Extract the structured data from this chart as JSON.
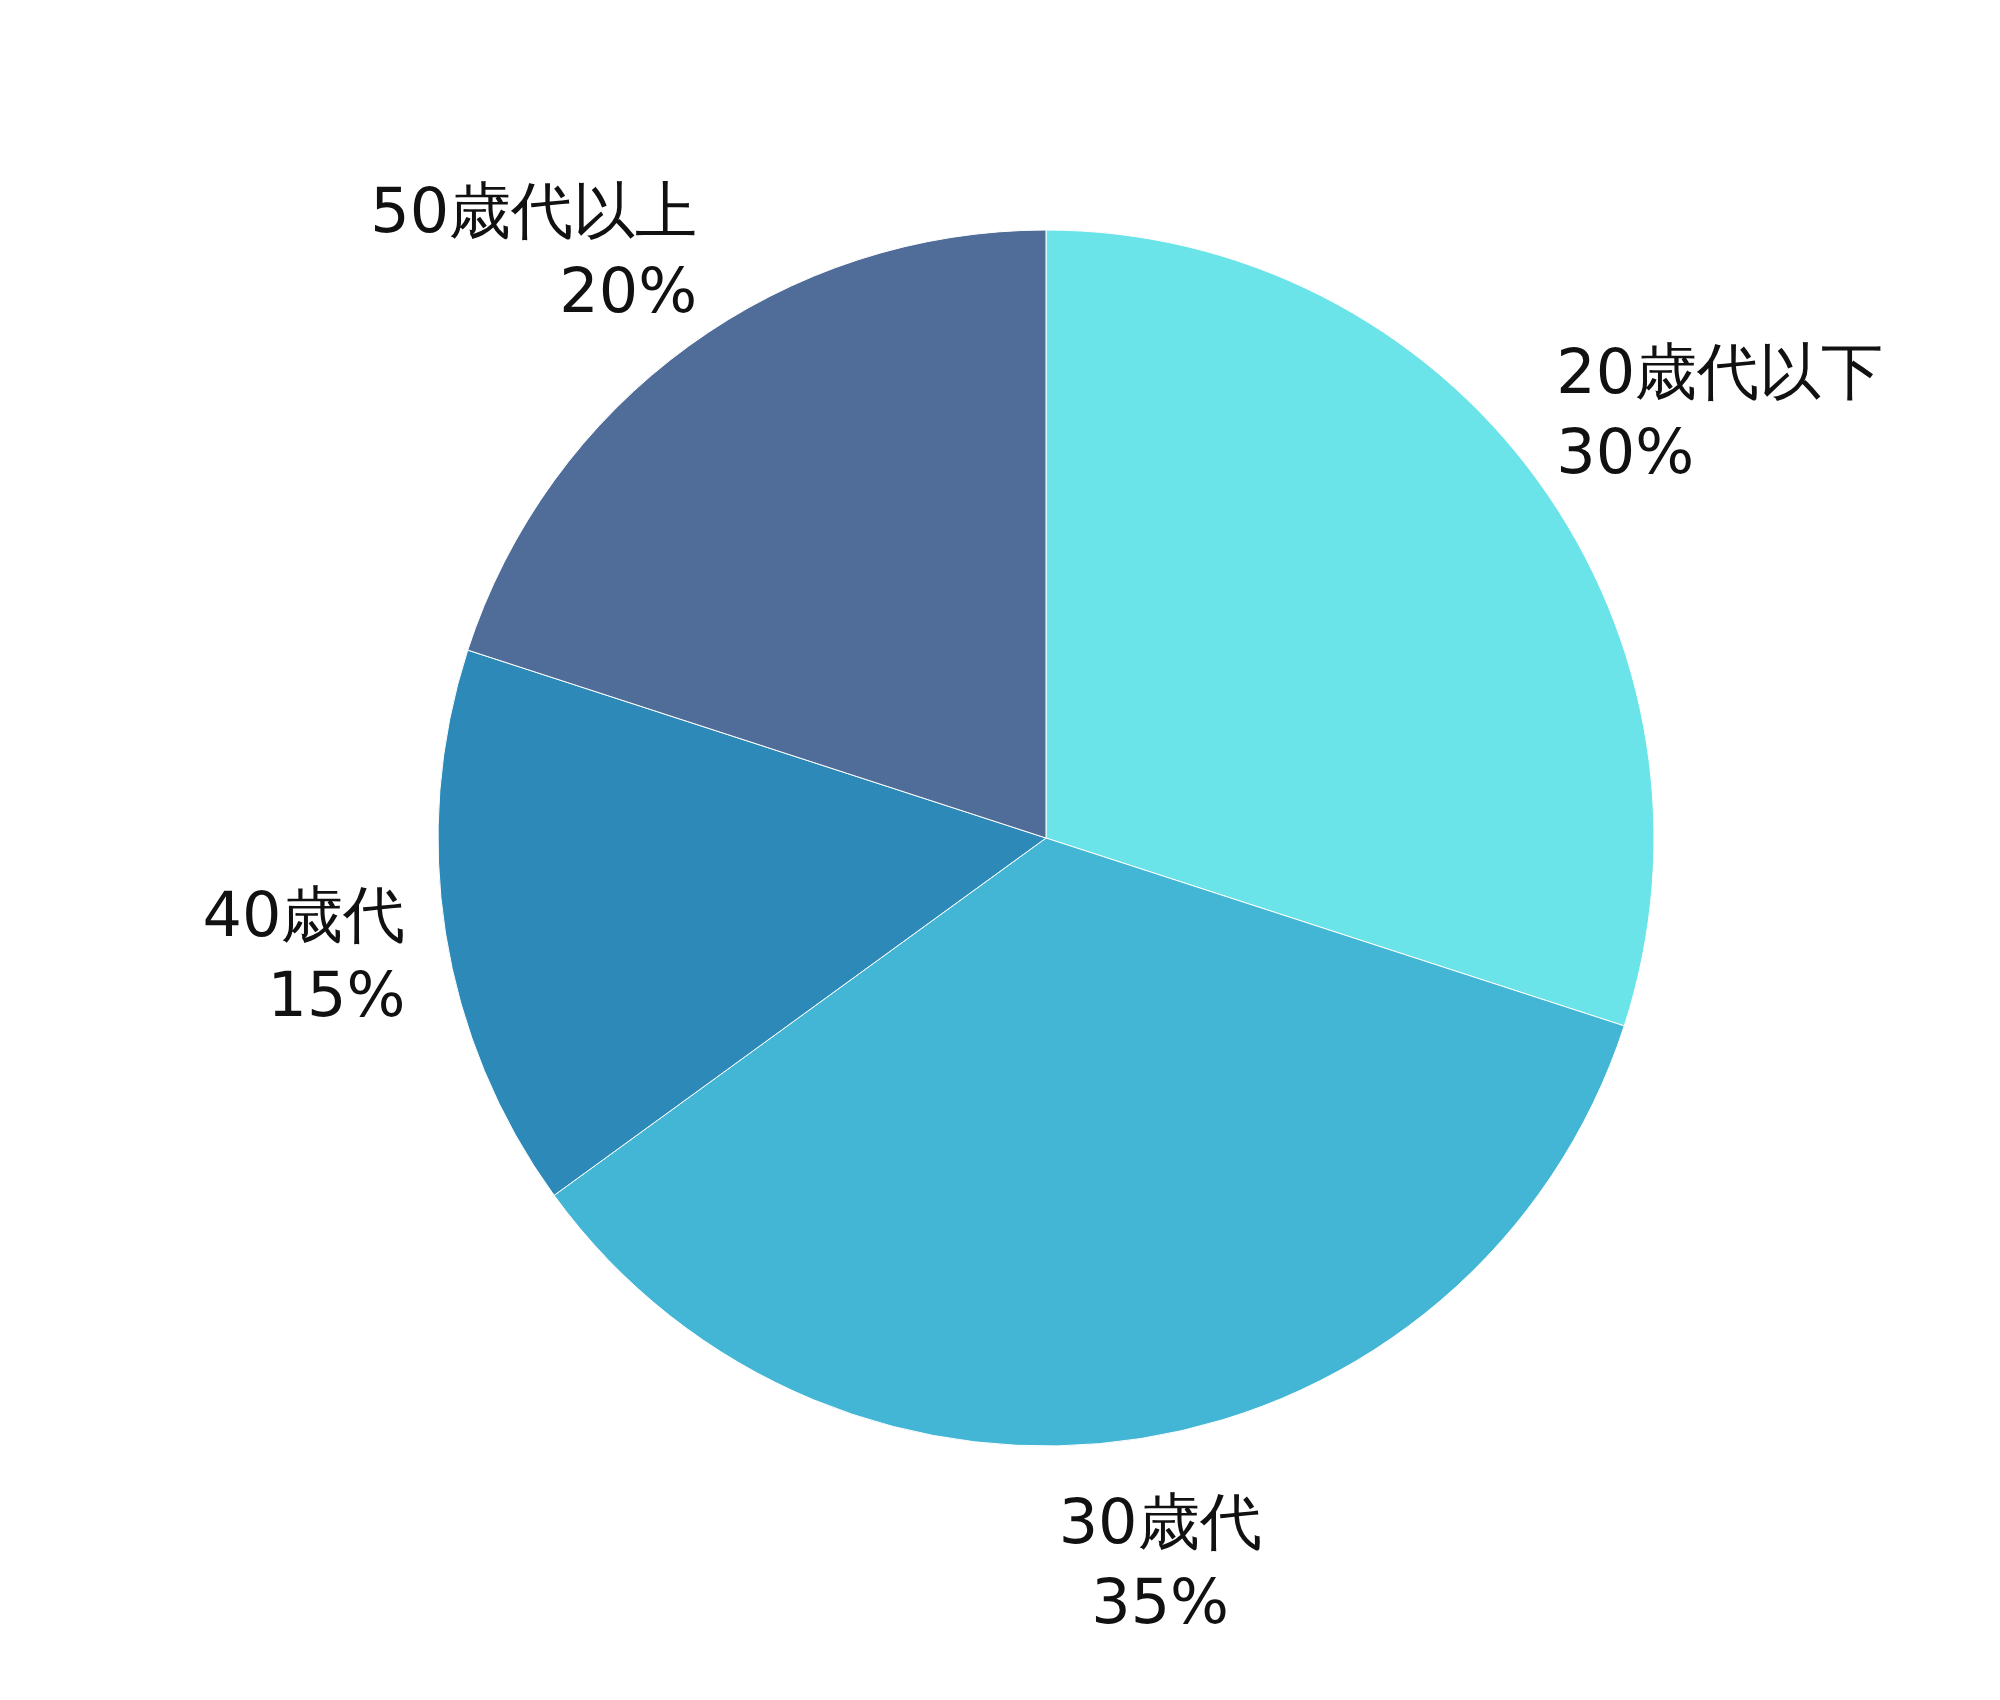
{
  "chart_data": {
    "type": "pie",
    "categories": [
      "20歳代以下",
      "30歳代",
      "40歳代",
      "50歳代以上"
    ],
    "values": [
      30,
      35,
      15,
      20
    ],
    "colors": [
      "#6ae4e8",
      "#43b6d6",
      "#2d8ab8",
      "#4f6d98"
    ],
    "value_labels": [
      "30%",
      "35%",
      "15%",
      "20%"
    ]
  }
}
